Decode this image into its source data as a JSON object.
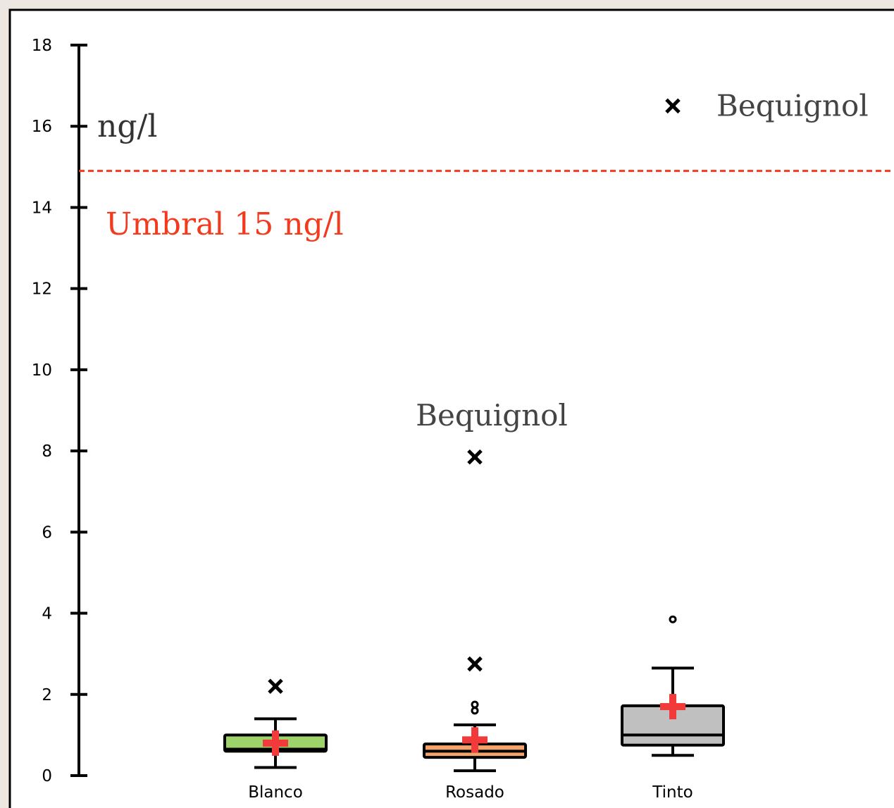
{
  "chart_data": {
    "type": "box",
    "unit_label": "ng/l",
    "ylim": [
      0,
      18
    ],
    "yticks": [
      0,
      2,
      4,
      6,
      8,
      10,
      12,
      14,
      16,
      18
    ],
    "categories": [
      "Blanco",
      "Rosado",
      "Tinto"
    ],
    "boxes": [
      {
        "category": "Blanco",
        "color": "#9ed36b",
        "whisker_low": 0.2,
        "q1": 0.6,
        "median": 0.65,
        "q3": 1.0,
        "whisker_high": 1.4,
        "mean": 0.8,
        "outliers": [
          {
            "value": 2.2,
            "marker": "star"
          }
        ]
      },
      {
        "category": "Rosado",
        "color": "#f4a36b",
        "whisker_low": 0.12,
        "q1": 0.45,
        "median": 0.6,
        "q3": 0.78,
        "whisker_high": 1.25,
        "mean": 0.88,
        "outliers": [
          {
            "value": 1.6,
            "marker": "circle"
          },
          {
            "value": 1.75,
            "marker": "circle"
          },
          {
            "value": 2.75,
            "marker": "star"
          },
          {
            "value": 7.85,
            "marker": "star",
            "label": "Bequignol"
          }
        ]
      },
      {
        "category": "Tinto",
        "color": "#c0c0c0",
        "whisker_low": 0.5,
        "q1": 0.75,
        "median": 1.0,
        "q3": 1.72,
        "whisker_high": 2.65,
        "mean": 1.7,
        "outliers": [
          {
            "value": 3.85,
            "marker": "circle"
          },
          {
            "value": 16.5,
            "marker": "star",
            "label": "Bequignol"
          }
        ]
      }
    ],
    "threshold": {
      "value": 14.9,
      "label": "Umbral 15 ng/l",
      "color": "#f23a1e"
    },
    "mean_marker_color": "#f23a3a"
  }
}
